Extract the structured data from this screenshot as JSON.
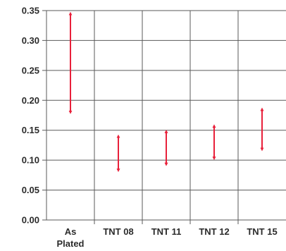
{
  "chart_data": {
    "type": "range",
    "categories": [
      "As Plated",
      "TNT 08",
      "TNT 11",
      "TNT 12",
      "TNT 15"
    ],
    "category_lines": [
      [
        "As",
        "Plated"
      ],
      [
        "TNT 08"
      ],
      [
        "TNT 11"
      ],
      [
        "TNT 12"
      ],
      [
        "TNT 15"
      ]
    ],
    "ranges": [
      {
        "low": 0.18,
        "high": 0.345
      },
      {
        "low": 0.083,
        "high": 0.14
      },
      {
        "low": 0.093,
        "high": 0.148
      },
      {
        "low": 0.103,
        "high": 0.157
      },
      {
        "low": 0.118,
        "high": 0.185
      }
    ],
    "ylim": [
      0,
      0.35
    ],
    "yticks": [
      "0.00",
      "0.05",
      "0.10",
      "0.15",
      "0.20",
      "0.25",
      "0.30",
      "0.35"
    ],
    "title": "",
    "xlabel": "",
    "ylabel": "",
    "grid": true,
    "legend": "none",
    "colors": {
      "arrow": "#e8203a",
      "grid": "#5a5a5a",
      "text": "#2b2b2b"
    }
  }
}
